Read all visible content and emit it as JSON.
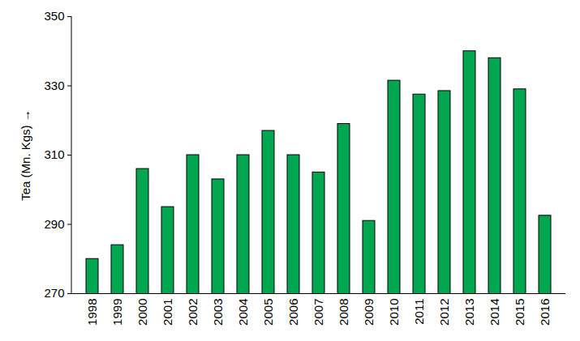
{
  "chart_data": {
    "type": "bar",
    "y_label": "Tea (Mn. Kgs)",
    "categories": [
      "1998",
      "1999",
      "2000",
      "2001",
      "2002",
      "2003",
      "2004",
      "2005",
      "2006",
      "2007",
      "2008",
      "2009",
      "2010",
      "2011",
      "2012",
      "2013",
      "2014",
      "2015",
      "2016"
    ],
    "values": [
      280,
      284,
      306,
      295,
      310,
      303,
      310,
      317,
      310,
      305,
      319,
      291,
      331.5,
      327.5,
      328.5,
      340,
      338,
      329,
      292.5
    ],
    "color": "#00a650",
    "ylim": [
      270,
      350
    ],
    "yticks": [
      270,
      290,
      310,
      330,
      350
    ],
    "grid": false
  }
}
